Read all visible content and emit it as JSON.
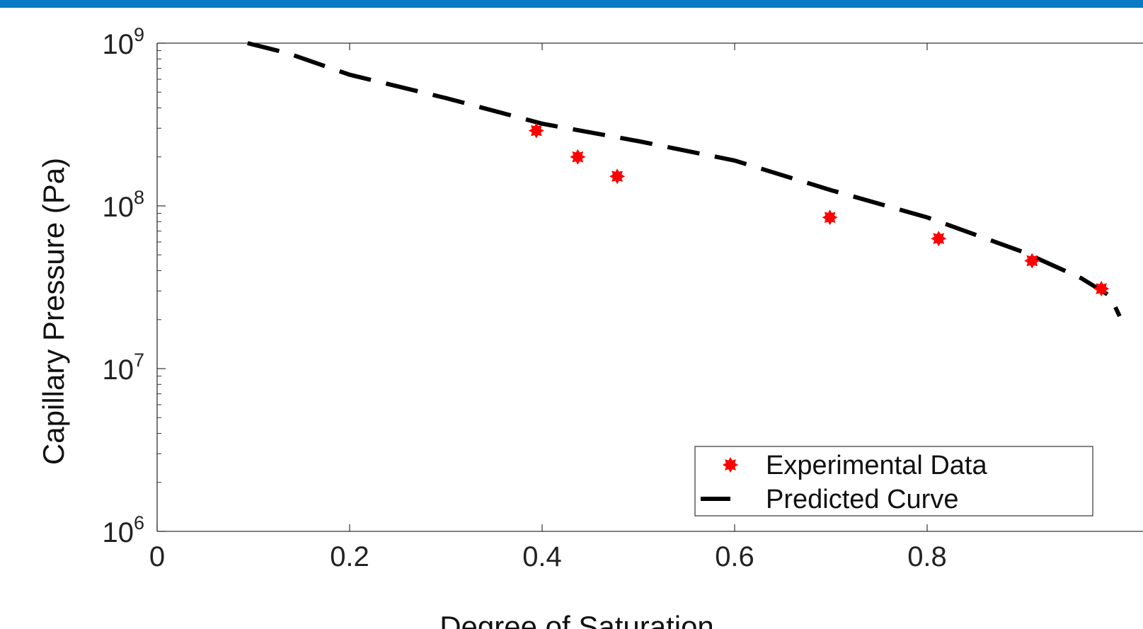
{
  "colors": {
    "top_bar": "#0a7ac4",
    "experimental": "#ff0000",
    "predicted": "#000000",
    "axis": "#333333"
  },
  "chart_data": {
    "type": "scatter",
    "xlabel": "Degree of Saturation",
    "ylabel": "Capillary Pressure (Pa)",
    "xlim": [
      0,
      1
    ],
    "ylim": [
      1000000,
      1000000000
    ],
    "yscale": "log",
    "x_ticks": [
      "0",
      "0.2",
      "0.4",
      "0.6",
      "0.8"
    ],
    "y_ticks": [
      {
        "value": 1000000,
        "base": "10",
        "exp": "6"
      },
      {
        "value": 10000000,
        "base": "10",
        "exp": "7"
      },
      {
        "value": 100000000,
        "base": "10",
        "exp": "8"
      },
      {
        "value": 1000000000,
        "base": "10",
        "exp": "9"
      }
    ],
    "grid": false,
    "legend_position": "bottom-right",
    "series": [
      {
        "name": "Experimental Data",
        "style": "red star markers",
        "points": [
          {
            "x": 0.394,
            "y": 290000000
          },
          {
            "x": 0.437,
            "y": 200000000
          },
          {
            "x": 0.478,
            "y": 152000000
          },
          {
            "x": 0.699,
            "y": 85000000
          },
          {
            "x": 0.812,
            "y": 63000000
          },
          {
            "x": 0.909,
            "y": 46000000
          },
          {
            "x": 0.981,
            "y": 31000000
          }
        ]
      },
      {
        "name": "Predicted Curve",
        "style": "black dashed line",
        "points": [
          {
            "x": 0.094,
            "y": 1000000000
          },
          {
            "x": 0.135,
            "y": 870000000
          },
          {
            "x": 0.2,
            "y": 640000000
          },
          {
            "x": 0.3,
            "y": 460000000
          },
          {
            "x": 0.4,
            "y": 320000000
          },
          {
            "x": 0.5,
            "y": 250000000
          },
          {
            "x": 0.6,
            "y": 190000000
          },
          {
            "x": 0.7,
            "y": 125000000
          },
          {
            "x": 0.8,
            "y": 85000000
          },
          {
            "x": 0.9,
            "y": 52000000
          },
          {
            "x": 0.96,
            "y": 36000000
          },
          {
            "x": 0.99,
            "y": 28000000
          },
          {
            "x": 1.0,
            "y": 21000000
          }
        ]
      }
    ]
  }
}
